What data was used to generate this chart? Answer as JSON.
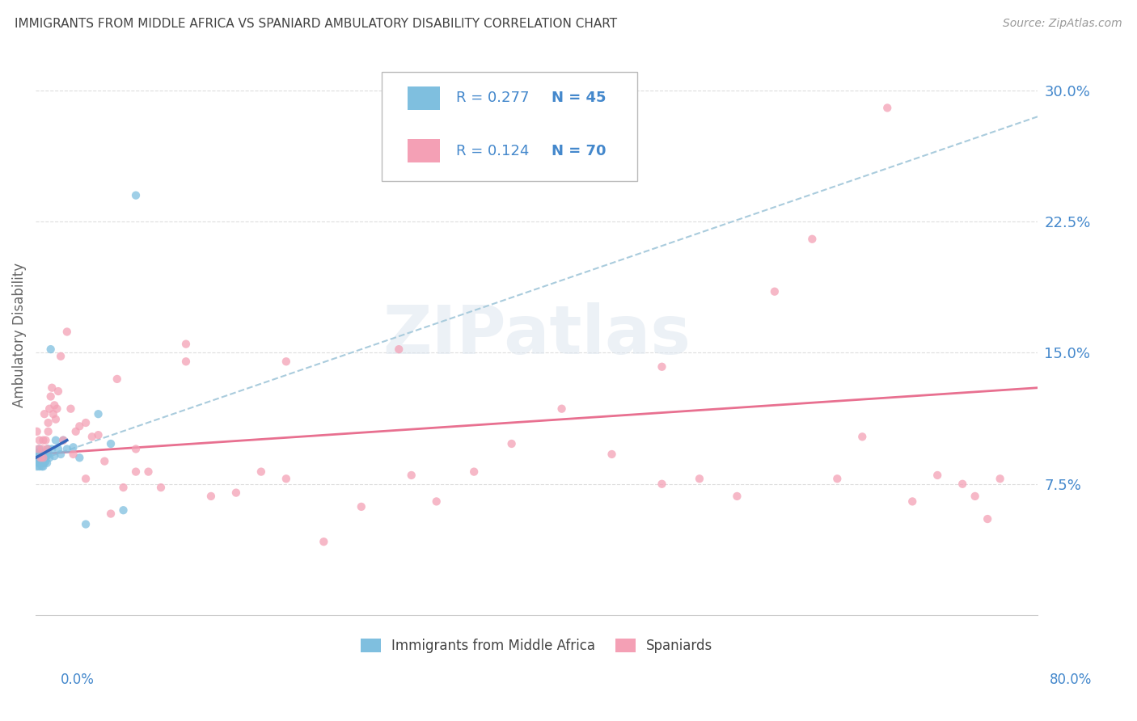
{
  "title": "IMMIGRANTS FROM MIDDLE AFRICA VS SPANIARD AMBULATORY DISABILITY CORRELATION CHART",
  "source": "Source: ZipAtlas.com",
  "ylabel": "Ambulatory Disability",
  "right_yticklabels": [
    "",
    "7.5%",
    "15.0%",
    "22.5%",
    "30.0%"
  ],
  "right_ytick_vals": [
    0.0,
    0.075,
    0.15,
    0.225,
    0.3
  ],
  "ylim": [
    0.0,
    0.32
  ],
  "xlim": [
    0.0,
    0.8
  ],
  "legend_r1": "R = 0.277",
  "legend_n1": "N = 45",
  "legend_r2": "R = 0.124",
  "legend_n2": "N = 70",
  "color_blue": "#7fbfdf",
  "color_pink": "#f4a0b5",
  "color_blue_text": "#4488cc",
  "color_title": "#444444",
  "color_source": "#999999",
  "color_grid": "#dddddd",
  "label_blue": "Immigrants from Middle Africa",
  "label_pink": "Spaniards",
  "watermark": "ZIPatlas",
  "blue_scatter_x": [
    0.001,
    0.001,
    0.001,
    0.001,
    0.002,
    0.002,
    0.002,
    0.002,
    0.003,
    0.003,
    0.003,
    0.004,
    0.004,
    0.004,
    0.005,
    0.005,
    0.005,
    0.006,
    0.006,
    0.006,
    0.007,
    0.007,
    0.007,
    0.008,
    0.008,
    0.009,
    0.009,
    0.01,
    0.01,
    0.011,
    0.012,
    0.013,
    0.015,
    0.016,
    0.018,
    0.02,
    0.022,
    0.025,
    0.03,
    0.035,
    0.04,
    0.05,
    0.06,
    0.07,
    0.08
  ],
  "blue_scatter_y": [
    0.088,
    0.09,
    0.092,
    0.085,
    0.087,
    0.09,
    0.093,
    0.088,
    0.085,
    0.09,
    0.095,
    0.088,
    0.092,
    0.087,
    0.085,
    0.09,
    0.093,
    0.088,
    0.091,
    0.085,
    0.092,
    0.087,
    0.09,
    0.093,
    0.088,
    0.091,
    0.087,
    0.092,
    0.095,
    0.09,
    0.152,
    0.095,
    0.091,
    0.1,
    0.095,
    0.092,
    0.1,
    0.095,
    0.096,
    0.09,
    0.052,
    0.115,
    0.098,
    0.06,
    0.24
  ],
  "pink_scatter_x": [
    0.001,
    0.002,
    0.003,
    0.004,
    0.005,
    0.006,
    0.006,
    0.007,
    0.008,
    0.009,
    0.01,
    0.01,
    0.011,
    0.012,
    0.013,
    0.014,
    0.015,
    0.016,
    0.017,
    0.018,
    0.02,
    0.022,
    0.025,
    0.028,
    0.03,
    0.032,
    0.035,
    0.04,
    0.045,
    0.05,
    0.055,
    0.06,
    0.065,
    0.07,
    0.08,
    0.09,
    0.1,
    0.12,
    0.14,
    0.16,
    0.18,
    0.2,
    0.23,
    0.26,
    0.29,
    0.32,
    0.35,
    0.38,
    0.42,
    0.46,
    0.5,
    0.53,
    0.56,
    0.59,
    0.62,
    0.64,
    0.66,
    0.68,
    0.7,
    0.72,
    0.74,
    0.75,
    0.76,
    0.77,
    0.04,
    0.08,
    0.12,
    0.2,
    0.3,
    0.5
  ],
  "pink_scatter_y": [
    0.105,
    0.095,
    0.1,
    0.09,
    0.095,
    0.1,
    0.09,
    0.115,
    0.1,
    0.095,
    0.11,
    0.105,
    0.118,
    0.125,
    0.13,
    0.115,
    0.12,
    0.112,
    0.118,
    0.128,
    0.148,
    0.1,
    0.162,
    0.118,
    0.092,
    0.105,
    0.108,
    0.078,
    0.102,
    0.103,
    0.088,
    0.058,
    0.135,
    0.073,
    0.082,
    0.082,
    0.073,
    0.145,
    0.068,
    0.07,
    0.082,
    0.078,
    0.042,
    0.062,
    0.152,
    0.065,
    0.082,
    0.098,
    0.118,
    0.092,
    0.075,
    0.078,
    0.068,
    0.185,
    0.215,
    0.078,
    0.102,
    0.29,
    0.065,
    0.08,
    0.075,
    0.068,
    0.055,
    0.078,
    0.11,
    0.095,
    0.155,
    0.145,
    0.08,
    0.142
  ],
  "blue_trend_x0": 0.0,
  "blue_trend_x1": 0.8,
  "blue_trend_y0": 0.088,
  "blue_trend_y1": 0.285,
  "pink_trend_x0": 0.0,
  "pink_trend_x1": 0.8,
  "pink_trend_y0": 0.092,
  "pink_trend_y1": 0.13
}
